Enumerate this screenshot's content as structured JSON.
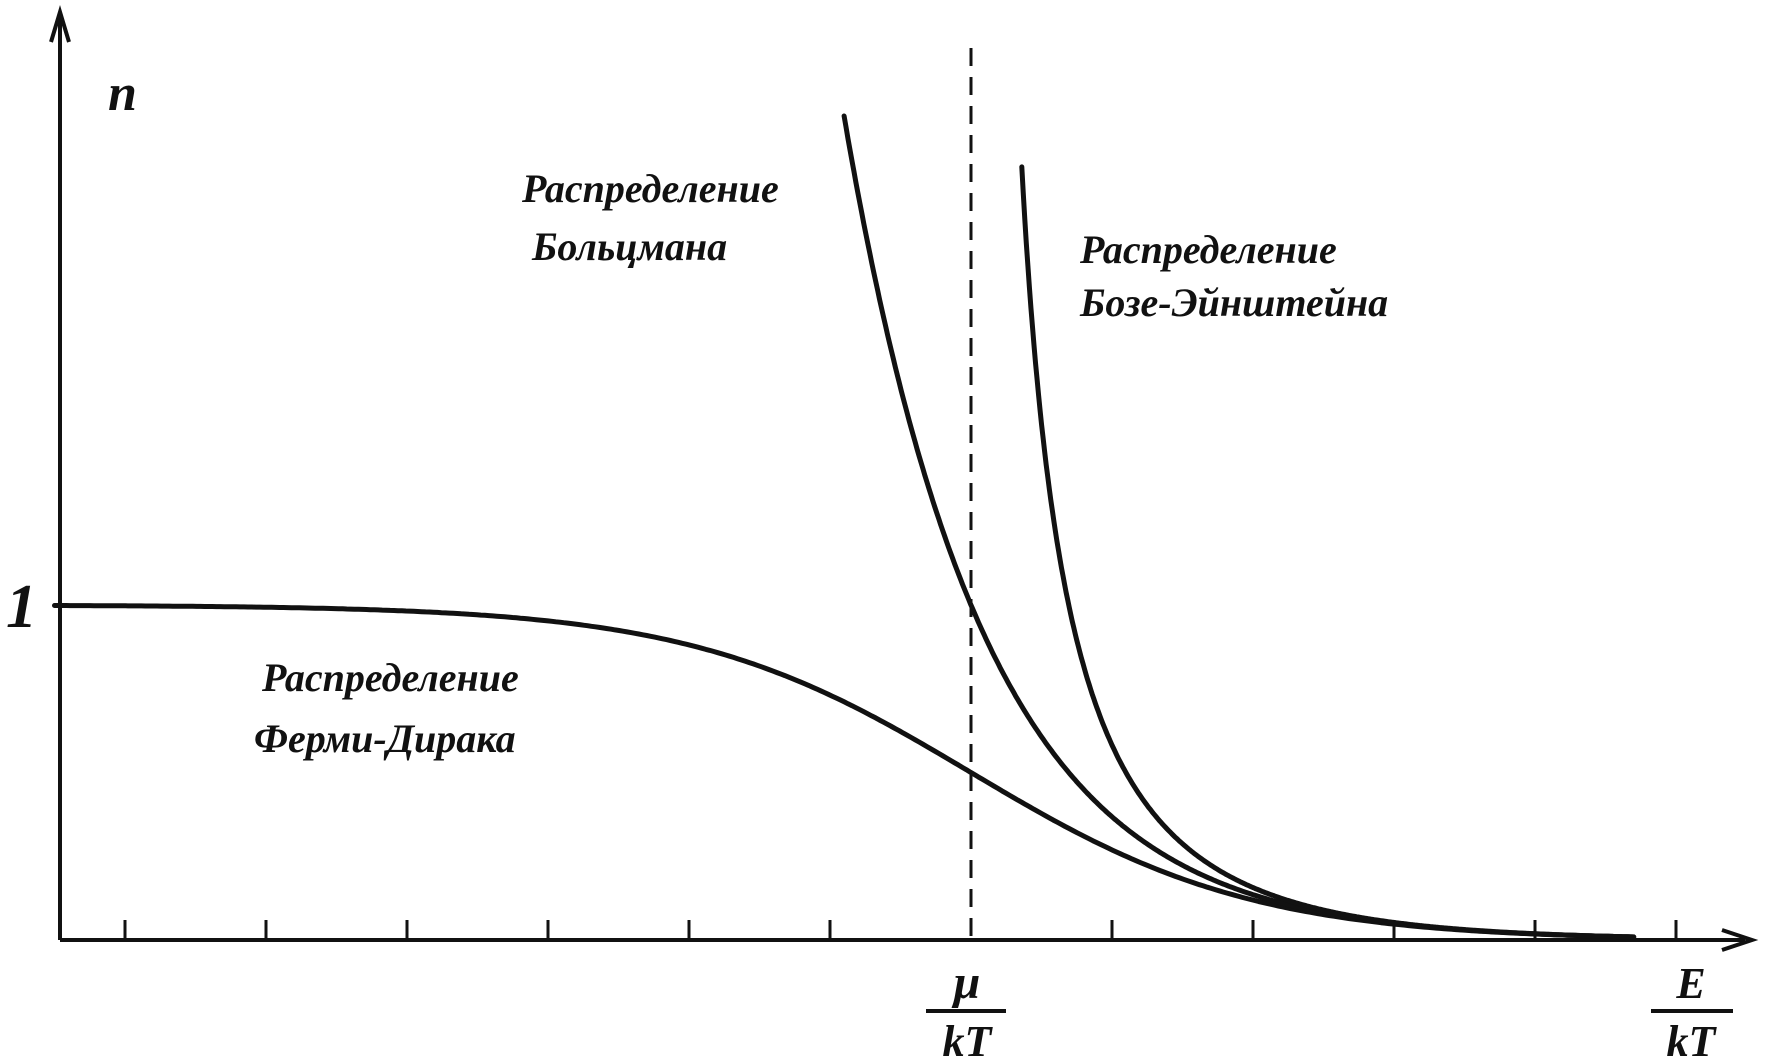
{
  "chart_data": {
    "type": "line",
    "title": "",
    "ylabel": "n",
    "xlabel": {
      "numerator": "E",
      "denominator": "kT"
    },
    "ytick_label": "1",
    "ytick_value": 1,
    "marker": {
      "numerator": "μ",
      "denominator": "kT",
      "x": 0
    },
    "xlim": [
      -7,
      5
    ],
    "ylim": [
      0,
      2.65
    ],
    "grid": false,
    "x_ticks": [
      -6,
      -5,
      -4,
      -3,
      -2,
      -1,
      0,
      1,
      2,
      3,
      4,
      5
    ],
    "series": [
      {
        "name_lines": [
          "Распределение",
          "Ферми-Дирака"
        ],
        "formula": "fermi-dirac",
        "x": [
          -6.5,
          -5,
          -4,
          -3,
          -2,
          -1,
          -0.5,
          0,
          0.5,
          1,
          2,
          3,
          4.7
        ],
        "values": [
          1.0,
          0.99,
          0.98,
          0.95,
          0.88,
          0.73,
          0.62,
          0.5,
          0.38,
          0.27,
          0.12,
          0.05,
          0.01
        ]
      },
      {
        "name_lines": [
          "Распределение",
          "Больцмана"
        ],
        "formula": "boltzmann",
        "x": [
          -0.9,
          -0.5,
          0,
          0.5,
          1,
          2,
          3,
          4.7
        ],
        "values": [
          2.46,
          1.65,
          1.0,
          0.61,
          0.37,
          0.14,
          0.05,
          0.01
        ]
      },
      {
        "name_lines": [
          "Распределение",
          "Бозе-Эйнштейна"
        ],
        "formula": "bose-einstein",
        "x": [
          0.36,
          0.5,
          1,
          1.5,
          2,
          3,
          4.7
        ],
        "values": [
          2.3,
          1.54,
          0.58,
          0.29,
          0.16,
          0.05,
          0.01
        ]
      }
    ]
  }
}
